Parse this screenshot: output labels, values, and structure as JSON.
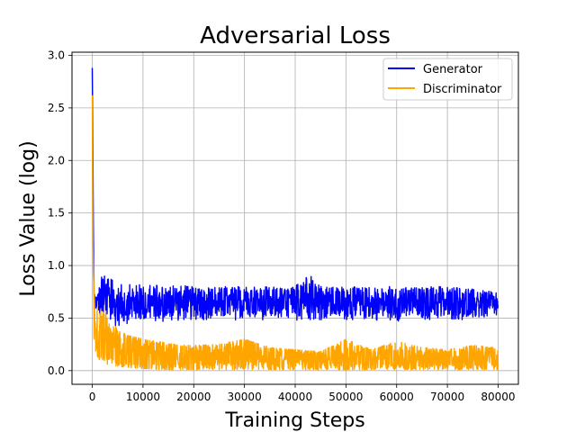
{
  "chart_data": {
    "type": "line",
    "title": "Adversarial Loss",
    "xlabel": "Training Steps",
    "ylabel": "Loss Value (log)",
    "xlim": [
      -4000,
      84000
    ],
    "ylim": [
      -0.13,
      3.03
    ],
    "x_ticks": [
      0,
      10000,
      20000,
      30000,
      40000,
      50000,
      60000,
      70000,
      80000
    ],
    "y_ticks": [
      0.0,
      0.5,
      1.0,
      1.5,
      2.0,
      2.5,
      3.0
    ],
    "x_tick_labels": [
      "0",
      "10000",
      "20000",
      "30000",
      "40000",
      "50000",
      "60000",
      "70000",
      "80000"
    ],
    "y_tick_labels": [
      "0.0",
      "0.5",
      "1.0",
      "1.5",
      "2.0",
      "2.5",
      "3.0"
    ],
    "grid": true,
    "legend_position": "top-right",
    "series": [
      {
        "name": "Generator",
        "color": "#0000ff",
        "x": [
          0,
          100,
          300,
          700,
          1000,
          1500,
          2000,
          2500,
          3000,
          4000,
          5000,
          6000,
          8000,
          10000,
          13000,
          16000,
          20000,
          25000,
          30000,
          35000,
          40000,
          42500,
          45000,
          50000,
          55000,
          60000,
          65000,
          70000,
          75000,
          80000
        ],
        "envelope_low": [
          2.88,
          2.2,
          0.6,
          0.56,
          0.54,
          0.5,
          0.46,
          0.44,
          0.42,
          0.42,
          0.42,
          0.44,
          0.45,
          0.46,
          0.46,
          0.46,
          0.48,
          0.48,
          0.48,
          0.48,
          0.48,
          0.48,
          0.48,
          0.48,
          0.48,
          0.47,
          0.48,
          0.48,
          0.48,
          0.5
        ],
        "envelope_high": [
          2.88,
          2.2,
          0.78,
          0.76,
          0.74,
          0.86,
          0.96,
          0.9,
          0.92,
          0.86,
          0.82,
          0.82,
          0.82,
          0.82,
          0.82,
          0.82,
          0.8,
          0.8,
          0.8,
          0.8,
          0.8,
          0.96,
          0.8,
          0.8,
          0.8,
          0.8,
          0.8,
          0.8,
          0.78,
          0.74
        ]
      },
      {
        "name": "Discriminator",
        "color": "#ffa500",
        "x": [
          0,
          100,
          300,
          700,
          1000,
          1500,
          2000,
          3000,
          4000,
          5000,
          7000,
          10000,
          13000,
          16000,
          20000,
          25000,
          30000,
          35000,
          40000,
          45000,
          50000,
          55000,
          60000,
          65000,
          70000,
          75000,
          80000
        ],
        "envelope_low": [
          2.62,
          1.2,
          0.2,
          0.15,
          0.12,
          0.1,
          0.08,
          0.06,
          0.05,
          0.04,
          0.03,
          0.02,
          0.01,
          0.01,
          0.01,
          0.01,
          0.01,
          0.01,
          0.01,
          0.01,
          0.01,
          0.01,
          0.01,
          0.01,
          0.01,
          0.01,
          0.01
        ],
        "envelope_high": [
          2.62,
          1.2,
          0.8,
          0.64,
          0.62,
          0.6,
          0.55,
          0.58,
          0.45,
          0.4,
          0.34,
          0.3,
          0.28,
          0.25,
          0.24,
          0.25,
          0.3,
          0.22,
          0.2,
          0.18,
          0.3,
          0.2,
          0.28,
          0.22,
          0.2,
          0.24,
          0.22
        ]
      }
    ]
  }
}
